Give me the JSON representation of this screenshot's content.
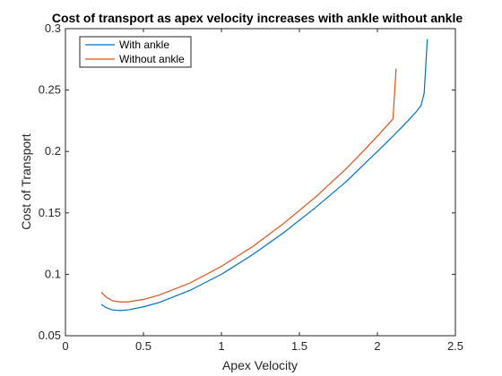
{
  "chart_data": {
    "type": "line",
    "title": "Cost of transport as apex velocity increases with ankle without ankle",
    "xlabel": "Apex Velocity",
    "ylabel": "Cost of Transport",
    "xlim": [
      0,
      2.5
    ],
    "ylim": [
      0.05,
      0.3
    ],
    "xticks": [
      0,
      0.5,
      1,
      1.5,
      2,
      2.5
    ],
    "yticks": [
      0.05,
      0.1,
      0.15,
      0.2,
      0.25,
      0.3
    ],
    "xtick_labels": [
      "0",
      "0.5",
      "1",
      "1.5",
      "2",
      "2.5"
    ],
    "ytick_labels": [
      "0.05",
      "0.1",
      "0.15",
      "0.2",
      "0.25",
      "0.3"
    ],
    "grid": false,
    "legend_position": "top-left",
    "series": [
      {
        "name": "With ankle",
        "color": "#0072BD",
        "x": [
          0.23,
          0.26,
          0.3,
          0.35,
          0.4,
          0.5,
          0.6,
          0.8,
          1.0,
          1.2,
          1.4,
          1.6,
          1.8,
          2.0,
          2.1,
          2.2,
          2.25,
          2.28,
          2.3,
          2.32
        ],
        "y": [
          0.0755,
          0.073,
          0.071,
          0.0705,
          0.071,
          0.0735,
          0.077,
          0.087,
          0.1,
          0.116,
          0.134,
          0.154,
          0.1755,
          0.2,
          0.2125,
          0.2255,
          0.2325,
          0.2375,
          0.2475,
          0.2915
        ]
      },
      {
        "name": "Without ankle",
        "color": "#D95319",
        "x": [
          0.23,
          0.26,
          0.3,
          0.35,
          0.4,
          0.5,
          0.6,
          0.8,
          1.0,
          1.2,
          1.4,
          1.6,
          1.8,
          1.9,
          2.0,
          2.05,
          2.1,
          2.12
        ],
        "y": [
          0.0855,
          0.0815,
          0.0785,
          0.0775,
          0.0775,
          0.0795,
          0.083,
          0.093,
          0.1065,
          0.1225,
          0.1415,
          0.1625,
          0.186,
          0.199,
          0.2125,
          0.2195,
          0.2265,
          0.2675
        ]
      }
    ]
  }
}
